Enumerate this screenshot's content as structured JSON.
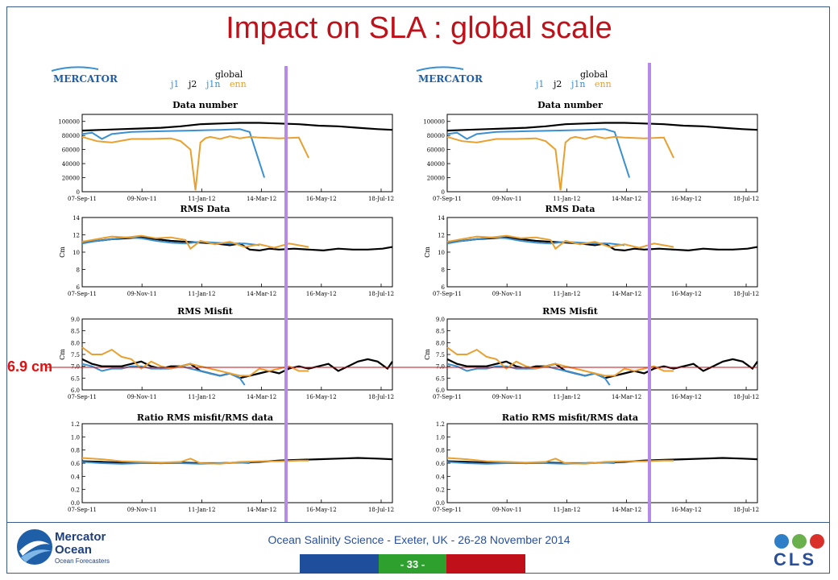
{
  "slide": {
    "title": "Impact on SLA : global scale",
    "annotation": "6.9 cm",
    "footer": "Ocean Salinity Science - Exeter, UK - 26-28 November 2014",
    "page_number": "- 33 -",
    "logo_left": {
      "line1": "Mercator",
      "line2": "Ocean",
      "line3": "Ocean Forecasters"
    },
    "logo_right": {
      "text": "CLS"
    },
    "colors": {
      "title": "#c0101a",
      "marker": "#b58ae8",
      "refline": "#c0101a",
      "j1": "#3a8fd0",
      "j2": "#000000",
      "j1n": "#e8a030",
      "enn": "#e8a030"
    }
  },
  "panel_header": {
    "logo": "MERCATOR",
    "global": "global",
    "legend": [
      {
        "name": "j1",
        "color": "#3a8fd0"
      },
      {
        "name": "j2",
        "color": "#000000"
      },
      {
        "name": "j1n",
        "color": "#3a8fd0"
      },
      {
        "name": "enn",
        "color": "#e8a030"
      }
    ]
  },
  "chart_data": [
    {
      "type": "line",
      "title": "Data number",
      "ylabel": "",
      "ylim": [
        0,
        110000
      ],
      "yticks": [
        0,
        20000,
        40000,
        60000,
        80000,
        100000
      ],
      "xticks": [
        "07-Sep-11",
        "09-Nov-11",
        "11-Jan-12",
        "14-Mar-12",
        "16-May-12",
        "18-Jul-12"
      ],
      "xlim": [
        0,
        315
      ],
      "series": [
        {
          "color": "#000000",
          "x": [
            0,
            20,
            40,
            60,
            80,
            100,
            120,
            140,
            160,
            180,
            200,
            220,
            240,
            260,
            280,
            300,
            315
          ],
          "y": [
            87000,
            88000,
            89000,
            90000,
            91000,
            93000,
            96000,
            97000,
            98000,
            98000,
            97000,
            96000,
            94000,
            93000,
            91000,
            89000,
            88000
          ]
        },
        {
          "color": "#3a8fd0",
          "x": [
            0,
            10,
            20,
            30,
            50,
            80,
            110,
            140,
            160,
            170,
            185
          ],
          "y": [
            82000,
            84000,
            75000,
            82000,
            85000,
            86000,
            87000,
            88000,
            89000,
            85000,
            20000
          ]
        },
        {
          "color": "#e8a030",
          "x": [
            0,
            15,
            30,
            50,
            70,
            90,
            100,
            110,
            115,
            120,
            125,
            130,
            140,
            150,
            160,
            170,
            180,
            200,
            220,
            230
          ],
          "y": [
            78000,
            72000,
            70000,
            75000,
            75000,
            76000,
            72000,
            60000,
            2000,
            70000,
            76000,
            78000,
            75000,
            79000,
            76000,
            78000,
            77000,
            76000,
            77000,
            48000
          ]
        }
      ]
    },
    {
      "type": "line",
      "title": "RMS Data",
      "ylabel": "Cm",
      "ylim": [
        6,
        14
      ],
      "yticks": [
        6,
        8,
        10,
        12,
        14
      ],
      "xticks": [
        "07-Sep-11",
        "09-Nov-11",
        "11-Jan-12",
        "14-Mar-12",
        "16-May-12",
        "18-Jul-12"
      ],
      "xlim": [
        0,
        315
      ],
      "series": [
        {
          "color": "#000000",
          "x": [
            0,
            15,
            30,
            45,
            60,
            75,
            90,
            105,
            120,
            135,
            150,
            160,
            170,
            180,
            190,
            200,
            215,
            230,
            245,
            260,
            275,
            290,
            305,
            315
          ],
          "y": [
            11.2,
            11.3,
            11.5,
            11.6,
            11.7,
            11.5,
            11.3,
            11.2,
            11.1,
            11.0,
            10.8,
            11.0,
            10.3,
            10.2,
            10.4,
            10.3,
            10.4,
            10.3,
            10.2,
            10.4,
            10.3,
            10.3,
            10.4,
            10.6
          ]
        },
        {
          "color": "#3a8fd0",
          "x": [
            0,
            15,
            30,
            45,
            60,
            75,
            90,
            105,
            120,
            135,
            150,
            165,
            180
          ],
          "y": [
            11.0,
            11.3,
            11.5,
            11.7,
            11.6,
            11.3,
            11.1,
            11.0,
            11.2,
            11.1,
            11.0,
            11.0,
            10.8
          ]
        },
        {
          "color": "#e8a030",
          "x": [
            0,
            15,
            30,
            45,
            60,
            75,
            90,
            105,
            110,
            120,
            135,
            150,
            165,
            180,
            195,
            210,
            225,
            230
          ],
          "y": [
            11.2,
            11.5,
            11.8,
            11.7,
            11.9,
            11.6,
            11.7,
            11.4,
            10.4,
            11.3,
            10.9,
            11.2,
            10.6,
            10.9,
            10.5,
            11.0,
            10.7,
            10.6
          ]
        }
      ]
    },
    {
      "type": "line",
      "title": "RMS Misfit",
      "ylabel": "Cm",
      "ylim": [
        6.0,
        9.0
      ],
      "yticks": [
        6.0,
        6.5,
        7.0,
        7.5,
        8.0,
        8.5,
        9.0
      ],
      "xticks": [
        "07-Sep-11",
        "09-Nov-11",
        "11-Jan-12",
        "14-Mar-12",
        "16-May-12",
        "18-Jul-12"
      ],
      "xlim": [
        0,
        315
      ],
      "reference_line": 6.9,
      "series": [
        {
          "color": "#000000",
          "x": [
            0,
            10,
            20,
            30,
            40,
            50,
            60,
            70,
            80,
            90,
            100,
            110,
            120,
            130,
            140,
            150,
            160,
            170,
            180,
            190,
            200,
            210,
            220,
            230,
            240,
            250,
            260,
            270,
            280,
            290,
            300,
            310,
            315
          ],
          "y": [
            7.3,
            7.1,
            7.0,
            7.0,
            7.0,
            7.1,
            7.2,
            7.0,
            6.9,
            7.0,
            7.0,
            7.1,
            6.8,
            6.7,
            6.6,
            6.7,
            6.5,
            6.6,
            6.7,
            6.8,
            6.7,
            6.9,
            7.0,
            6.9,
            7.0,
            7.1,
            6.8,
            7.0,
            7.2,
            7.3,
            7.2,
            6.9,
            7.2
          ]
        },
        {
          "color": "#3a8fd0",
          "x": [
            0,
            10,
            20,
            30,
            40,
            50,
            60,
            70,
            80,
            90,
            100,
            110,
            120,
            130,
            140,
            150,
            160,
            165
          ],
          "y": [
            7.1,
            7.0,
            6.8,
            6.9,
            6.9,
            7.0,
            7.0,
            6.9,
            6.9,
            6.9,
            7.0,
            6.9,
            6.8,
            6.7,
            6.6,
            6.7,
            6.5,
            6.2
          ]
        },
        {
          "color": "#e8a030",
          "x": [
            0,
            10,
            20,
            30,
            40,
            50,
            60,
            70,
            80,
            90,
            100,
            110,
            120,
            130,
            140,
            150,
            160,
            170,
            180,
            190,
            200,
            210,
            220,
            230
          ],
          "y": [
            7.8,
            7.5,
            7.5,
            7.7,
            7.4,
            7.3,
            6.9,
            7.2,
            7.0,
            6.9,
            7.0,
            7.1,
            7.0,
            6.9,
            6.8,
            6.7,
            6.6,
            6.6,
            6.9,
            6.8,
            6.9,
            7.0,
            6.8,
            6.8
          ]
        }
      ]
    },
    {
      "type": "line",
      "title": "Ratio RMS misfit/RMS data",
      "ylabel": "",
      "ylim": [
        0.0,
        1.2
      ],
      "yticks": [
        0.0,
        0.2,
        0.4,
        0.6,
        0.8,
        1.0,
        1.2
      ],
      "xticks": [
        "07-Sep-11",
        "09-Nov-11",
        "11-Jan-12",
        "14-Mar-12",
        "16-May-12",
        "18-Jul-12"
      ],
      "xlim": [
        0,
        315
      ],
      "series": [
        {
          "color": "#000000",
          "x": [
            0,
            20,
            40,
            60,
            80,
            100,
            120,
            140,
            160,
            180,
            200,
            220,
            240,
            260,
            280,
            300,
            315
          ],
          "y": [
            0.63,
            0.62,
            0.61,
            0.61,
            0.6,
            0.61,
            0.6,
            0.6,
            0.61,
            0.62,
            0.64,
            0.65,
            0.66,
            0.67,
            0.68,
            0.67,
            0.66
          ]
        },
        {
          "color": "#3a8fd0",
          "x": [
            0,
            20,
            40,
            60,
            80,
            100,
            120,
            140,
            160,
            170
          ],
          "y": [
            0.62,
            0.6,
            0.59,
            0.6,
            0.6,
            0.6,
            0.59,
            0.6,
            0.61,
            0.6
          ]
        },
        {
          "color": "#e8a030",
          "x": [
            0,
            20,
            40,
            60,
            80,
            100,
            110,
            120,
            140,
            160,
            180,
            200,
            220,
            230
          ],
          "y": [
            0.68,
            0.66,
            0.63,
            0.62,
            0.61,
            0.62,
            0.67,
            0.6,
            0.59,
            0.62,
            0.63,
            0.63,
            0.64,
            0.64
          ]
        }
      ]
    }
  ]
}
